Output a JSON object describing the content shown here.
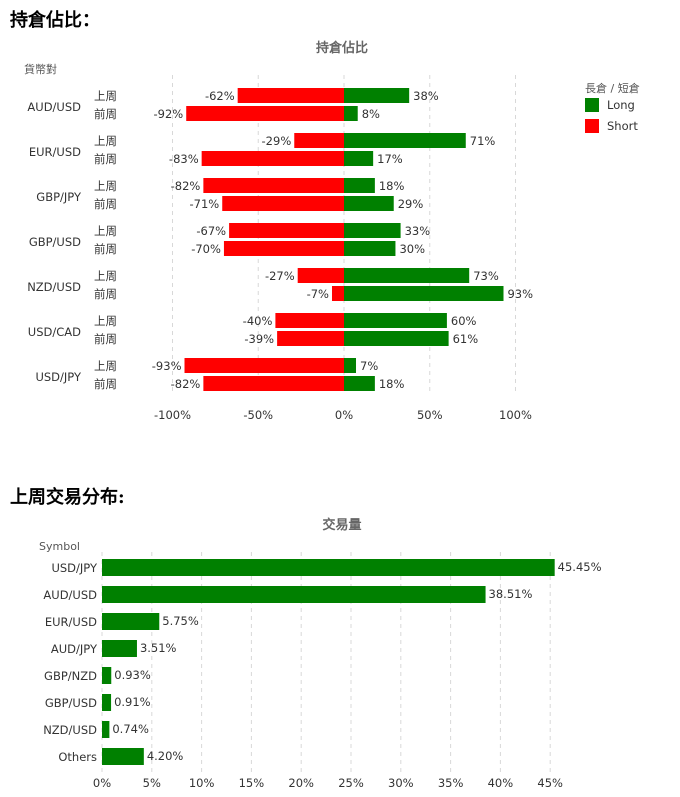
{
  "headings": {
    "positions": "持倉佔比：",
    "volume": "上周交易分布:"
  },
  "colors": {
    "long": "#008000",
    "short": "#ff0000"
  },
  "chart_data": [
    {
      "type": "bar",
      "orientation": "horizontal-diverging",
      "title": "持倉佔比",
      "ylabel": "貨幣對",
      "legend_title": "長倉 / 短倉",
      "legend_position": "top-right",
      "xlim": [
        -100,
        100
      ],
      "x_ticks": [
        "-100%",
        "-50%",
        "0%",
        "50%",
        "100%"
      ],
      "grid": true,
      "period_labels": [
        "上周",
        "前周"
      ],
      "series": [
        {
          "name": "Long",
          "color": "#008000"
        },
        {
          "name": "Short",
          "color": "#ff0000"
        }
      ],
      "pairs": [
        {
          "pair": "AUD/USD",
          "rows": [
            {
              "short": -62,
              "long": 38
            },
            {
              "short": -92,
              "long": 8
            }
          ]
        },
        {
          "pair": "EUR/USD",
          "rows": [
            {
              "short": -29,
              "long": 71
            },
            {
              "short": -83,
              "long": 17
            }
          ]
        },
        {
          "pair": "GBP/JPY",
          "rows": [
            {
              "short": -82,
              "long": 18
            },
            {
              "short": -71,
              "long": 29
            }
          ]
        },
        {
          "pair": "GBP/USD",
          "rows": [
            {
              "short": -67,
              "long": 33
            },
            {
              "short": -70,
              "long": 30
            }
          ]
        },
        {
          "pair": "NZD/USD",
          "rows": [
            {
              "short": -27,
              "long": 73
            },
            {
              "short": -7,
              "long": 93
            }
          ]
        },
        {
          "pair": "USD/CAD",
          "rows": [
            {
              "short": -40,
              "long": 60
            },
            {
              "short": -39,
              "long": 61
            }
          ]
        },
        {
          "pair": "USD/JPY",
          "rows": [
            {
              "short": -93,
              "long": 7
            },
            {
              "short": -82,
              "long": 18
            }
          ]
        }
      ]
    },
    {
      "type": "bar",
      "orientation": "horizontal",
      "title": "交易量",
      "ylabel": "Symbol",
      "xlim": [
        0,
        45
      ],
      "x_ticks": [
        "0%",
        "5%",
        "10%",
        "15%",
        "20%",
        "25%",
        "30%",
        "35%",
        "40%",
        "45%"
      ],
      "grid": true,
      "color": "#008000",
      "categories": [
        "USD/JPY",
        "AUD/USD",
        "EUR/USD",
        "AUD/JPY",
        "GBP/NZD",
        "GBP/USD",
        "NZD/USD",
        "Others"
      ],
      "values": [
        45.45,
        38.51,
        5.75,
        3.51,
        0.93,
        0.91,
        0.74,
        4.2
      ],
      "value_labels": [
        "45.45%",
        "38.51%",
        "5.75%",
        "3.51%",
        "0.93%",
        "0.91%",
        "0.74%",
        "4.20%"
      ]
    }
  ]
}
